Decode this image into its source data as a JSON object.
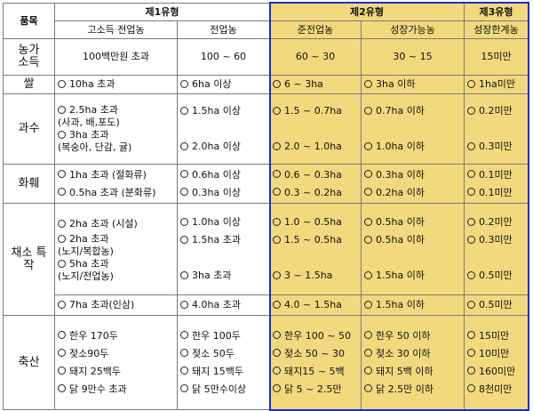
{
  "header": {
    "item": "품목",
    "type1": "제1유형",
    "type2": "제2유형",
    "type3": "제3유형",
    "sub": [
      "고소득 전업농",
      "전업농",
      "준전업농",
      "성장가능농",
      "성장한계농"
    ]
  },
  "rows": [
    {
      "label": "농가\n소득",
      "cells": [
        {
          "style": "center",
          "lines": [
            "100백만원 초과"
          ]
        },
        {
          "style": "center",
          "lines": [
            "100 ~ 60"
          ]
        },
        {
          "style": "center",
          "lines": [
            "60 ~ 30"
          ]
        },
        {
          "style": "center",
          "lines": [
            "30 ~ 15"
          ]
        },
        {
          "style": "center",
          "lines": [
            "15미만"
          ]
        }
      ]
    },
    {
      "label": "쌀",
      "cells": [
        {
          "lines": [
            "○ 10ha 초과"
          ]
        },
        {
          "lines": [
            "○ 6ha 이상"
          ]
        },
        {
          "lines": [
            "○ 6 ~ 3ha"
          ]
        },
        {
          "lines": [
            "○ 3ha 이하"
          ]
        },
        {
          "lines": [
            "○ 1ha미만"
          ]
        }
      ]
    },
    {
      "label": "과수",
      "cells": [
        {
          "lines": [
            "○ 2.5ha 초과\n(사과, 배,포도)",
            "○ 3ha 초과\n(복숭아, 단감, 귤)"
          ]
        },
        {
          "lines": [
            "○ 1.5ha 이상",
            "",
            "○ 2.0ha 이상"
          ]
        },
        {
          "lines": [
            "○ 1.5 ~ 0.7ha",
            "",
            "○ 2.0 ~ 1.0ha"
          ]
        },
        {
          "lines": [
            "○0.7ha 이하",
            "",
            "○ 1.0ha 이하"
          ]
        },
        {
          "lines": [
            "○ 0.2미만",
            "",
            "○ 0.3미만"
          ]
        }
      ]
    },
    {
      "label": "화훼",
      "cells": [
        {
          "lines": [
            "○ 1ha 초과 (절화류)",
            "○ 0.5ha 초과 (분화류)"
          ]
        },
        {
          "lines": [
            "○ 0.6ha 이상",
            "○ 0.3ha 이상"
          ]
        },
        {
          "lines": [
            "○ 0.6 ~ 0.3ha",
            "○ 0.3 ~ 0.2ha"
          ]
        },
        {
          "lines": [
            "○ 0.3ha 이하",
            "○ 0.2ha 이하"
          ]
        },
        {
          "lines": [
            "○ 0.1미만",
            "○ 0.1미만"
          ]
        }
      ]
    },
    {
      "label": "채소 특\n작",
      "cells": [
        {
          "lines": [
            "○ 2ha 초과 (시설)",
            "○ 2ha 초과\n(노지/복합농)",
            "○ 5ha 초과\n(노지/전업농)"
          ]
        },
        {
          "lines": [
            "○ 1.0ha 이상",
            "○ 1.5ha 초과",
            "",
            "○ 3ha 초과"
          ]
        },
        {
          "lines": [
            "○ 1.0 ~ 0.5ha",
            "○ 1.5 ~ 0.5ha",
            "",
            "○ 3 ~ 1.5ha"
          ]
        },
        {
          "lines": [
            "○ 0.5ha 이하",
            "○ 0.5ha 이하",
            "",
            "○ 1.5ha 이하"
          ]
        },
        {
          "lines": [
            "○ 0.2미만",
            "○ 0.3미만",
            "",
            "○ 0.5미만"
          ]
        }
      ]
    },
    {
      "label": "",
      "continuation": true,
      "cells": [
        {
          "lines": [
            "○ 7ha 초과(인삼)"
          ]
        },
        {
          "lines": [
            "○ 4.0ha 초과"
          ]
        },
        {
          "lines": [
            "○ 4.0 ~ 1.5ha"
          ]
        },
        {
          "lines": [
            "○ 1.5ha 이하"
          ]
        },
        {
          "lines": [
            "○ 0.5미만"
          ]
        }
      ]
    },
    {
      "label": "축산",
      "cells": [
        {
          "lines": [
            "○ 한우 170두",
            "○ 젖소90두",
            "○ 돼지 25백두",
            "○ 닭 9만수 초과"
          ]
        },
        {
          "lines": [
            "○ 한우 100두",
            "○ 젖소 50두",
            "○ 돼지 15백두",
            "○ 닭 5만수이상"
          ]
        },
        {
          "lines": [
            "○ 한우 100 ~ 50",
            "○ 젖소 50 ~ 30",
            "○ 돼지15 ~ 5백",
            "○ 닭 5 ~ 2.5만"
          ]
        },
        {
          "lines": [
            "○ 한우 50 이하",
            "○ 젖소 30 이하",
            "○ 돼지 5백 이하",
            "○ 닭 2.5만 이하"
          ]
        },
        {
          "lines": [
            "○ 15미만",
            "○ 10미만",
            "○ 160미만",
            "○ 8천미만"
          ]
        }
      ]
    }
  ]
}
